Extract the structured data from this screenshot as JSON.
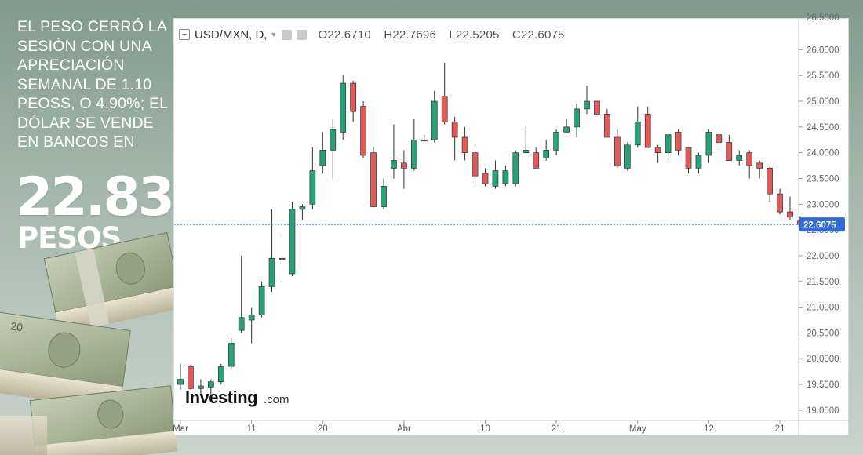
{
  "headline": {
    "text": "El peso cerró la sesión con una apreciación semanal de 1.10 peoss, o 4.90%; el dólar se vende en bancos en",
    "value": "22.83",
    "unit": "PESOS"
  },
  "toolbar": {
    "symbol": "USD/MXN, D,",
    "open_label": "O",
    "open": "22.6710",
    "high_label": "H",
    "high": "22.7696",
    "low_label": "L",
    "low": "22.5205",
    "close_label": "C",
    "close": "22.6075"
  },
  "watermark": {
    "brand": "Investing",
    "suffix": ".com"
  },
  "colors": {
    "up": "#26a17a",
    "down": "#e05a5a",
    "price_line": "#3a6ad1",
    "price_tag": "#2f6bd6"
  },
  "chart_data": {
    "type": "candlestick",
    "title": "USD/MXN, D,",
    "ylim": [
      18.8,
      26.6
    ],
    "y_ticks": [
      "19.0000",
      "19.5000",
      "20.0000",
      "20.5000",
      "21.0000",
      "21.5000",
      "22.0000",
      "22.5000",
      "23.0000",
      "23.5000",
      "24.0000",
      "24.5000",
      "25.0000",
      "25.5000",
      "26.0000"
    ],
    "top_tick_partial": "26.5000",
    "x_labels": [
      {
        "label": "Mar",
        "index": 0
      },
      {
        "label": "11",
        "index": 7
      },
      {
        "label": "20",
        "index": 14
      },
      {
        "label": "Abr",
        "index": 22
      },
      {
        "label": "10",
        "index": 30
      },
      {
        "label": "21",
        "index": 37
      },
      {
        "label": "May",
        "index": 45
      },
      {
        "label": "12",
        "index": 52
      },
      {
        "label": "21",
        "index": 59
      }
    ],
    "last_price": 22.6075,
    "last_price_label": "22.6075",
    "candles": [
      {
        "o": 19.5,
        "h": 19.9,
        "l": 19.4,
        "c": 19.6
      },
      {
        "o": 19.85,
        "h": 19.88,
        "l": 19.4,
        "c": 19.42
      },
      {
        "o": 19.42,
        "h": 19.6,
        "l": 19.3,
        "c": 19.47
      },
      {
        "o": 19.45,
        "h": 19.6,
        "l": 19.3,
        "c": 19.55
      },
      {
        "o": 19.55,
        "h": 19.9,
        "l": 19.5,
        "c": 19.85
      },
      {
        "o": 19.85,
        "h": 20.4,
        "l": 19.8,
        "c": 20.3
      },
      {
        "o": 20.55,
        "h": 22.0,
        "l": 20.5,
        "c": 20.8
      },
      {
        "o": 20.75,
        "h": 21.0,
        "l": 20.3,
        "c": 20.85
      },
      {
        "o": 20.85,
        "h": 21.5,
        "l": 20.8,
        "c": 21.4
      },
      {
        "o": 21.4,
        "h": 22.9,
        "l": 21.3,
        "c": 21.95
      },
      {
        "o": 21.95,
        "h": 22.4,
        "l": 21.5,
        "c": 21.93
      },
      {
        "o": 21.65,
        "h": 23.05,
        "l": 21.6,
        "c": 22.9
      },
      {
        "o": 22.9,
        "h": 23.0,
        "l": 22.7,
        "c": 22.95
      },
      {
        "o": 23.0,
        "h": 24.1,
        "l": 22.9,
        "c": 23.65
      },
      {
        "o": 23.75,
        "h": 24.4,
        "l": 23.6,
        "c": 24.05
      },
      {
        "o": 24.05,
        "h": 24.65,
        "l": 23.5,
        "c": 24.45
      },
      {
        "o": 24.4,
        "h": 25.5,
        "l": 24.25,
        "c": 25.35
      },
      {
        "o": 25.35,
        "h": 25.4,
        "l": 24.6,
        "c": 24.8
      },
      {
        "o": 24.9,
        "h": 25.0,
        "l": 23.9,
        "c": 23.95
      },
      {
        "o": 24.0,
        "h": 24.1,
        "l": 22.95,
        "c": 22.95
      },
      {
        "o": 22.95,
        "h": 23.5,
        "l": 22.9,
        "c": 23.35
      },
      {
        "o": 23.7,
        "h": 24.55,
        "l": 23.5,
        "c": 23.85
      },
      {
        "o": 23.8,
        "h": 24.05,
        "l": 23.3,
        "c": 23.7
      },
      {
        "o": 23.7,
        "h": 24.65,
        "l": 23.65,
        "c": 24.25
      },
      {
        "o": 24.25,
        "h": 24.35,
        "l": 24.25,
        "c": 24.25
      },
      {
        "o": 24.25,
        "h": 25.2,
        "l": 24.2,
        "c": 25.0
      },
      {
        "o": 25.1,
        "h": 25.75,
        "l": 24.55,
        "c": 24.6
      },
      {
        "o": 24.6,
        "h": 24.7,
        "l": 23.85,
        "c": 24.3
      },
      {
        "o": 24.3,
        "h": 24.5,
        "l": 23.85,
        "c": 24.0
      },
      {
        "o": 24.0,
        "h": 24.05,
        "l": 23.4,
        "c": 23.55
      },
      {
        "o": 23.6,
        "h": 23.7,
        "l": 23.35,
        "c": 23.4
      },
      {
        "o": 23.35,
        "h": 23.85,
        "l": 23.3,
        "c": 23.65
      },
      {
        "o": 23.4,
        "h": 23.75,
        "l": 23.35,
        "c": 23.65
      },
      {
        "o": 23.4,
        "h": 24.05,
        "l": 23.35,
        "c": 24.0
      },
      {
        "o": 24.0,
        "h": 24.5,
        "l": 24.0,
        "c": 24.05
      },
      {
        "o": 24.0,
        "h": 24.1,
        "l": 23.7,
        "c": 23.7
      },
      {
        "o": 23.9,
        "h": 24.25,
        "l": 23.85,
        "c": 24.05
      },
      {
        "o": 24.05,
        "h": 24.45,
        "l": 23.95,
        "c": 24.4
      },
      {
        "o": 24.4,
        "h": 24.65,
        "l": 24.4,
        "c": 24.5
      },
      {
        "o": 24.5,
        "h": 24.95,
        "l": 24.3,
        "c": 24.85
      },
      {
        "o": 24.85,
        "h": 25.3,
        "l": 24.75,
        "c": 25.0
      },
      {
        "o": 25.0,
        "h": 25.0,
        "l": 24.75,
        "c": 24.75
      },
      {
        "o": 24.75,
        "h": 24.85,
        "l": 24.3,
        "c": 24.3
      },
      {
        "o": 24.3,
        "h": 24.45,
        "l": 23.7,
        "c": 23.75
      },
      {
        "o": 23.7,
        "h": 24.2,
        "l": 23.65,
        "c": 24.15
      },
      {
        "o": 24.15,
        "h": 24.9,
        "l": 24.1,
        "c": 24.6
      },
      {
        "o": 24.75,
        "h": 24.9,
        "l": 24.1,
        "c": 24.1
      },
      {
        "o": 24.1,
        "h": 24.15,
        "l": 23.8,
        "c": 24.0
      },
      {
        "o": 24.0,
        "h": 24.4,
        "l": 23.85,
        "c": 24.35
      },
      {
        "o": 24.4,
        "h": 24.45,
        "l": 23.95,
        "c": 24.05
      },
      {
        "o": 24.1,
        "h": 24.1,
        "l": 23.6,
        "c": 23.7
      },
      {
        "o": 23.7,
        "h": 24.0,
        "l": 23.6,
        "c": 23.95
      },
      {
        "o": 23.95,
        "h": 24.45,
        "l": 23.8,
        "c": 24.4
      },
      {
        "o": 24.35,
        "h": 24.4,
        "l": 24.1,
        "c": 24.2
      },
      {
        "o": 24.2,
        "h": 24.35,
        "l": 23.85,
        "c": 23.85
      },
      {
        "o": 23.85,
        "h": 24.05,
        "l": 23.75,
        "c": 23.95
      },
      {
        "o": 24.0,
        "h": 24.05,
        "l": 23.5,
        "c": 23.75
      },
      {
        "o": 23.8,
        "h": 23.85,
        "l": 23.5,
        "c": 23.7
      },
      {
        "o": 23.7,
        "h": 23.72,
        "l": 23.05,
        "c": 23.2
      },
      {
        "o": 23.2,
        "h": 23.3,
        "l": 22.8,
        "c": 22.85
      },
      {
        "o": 22.85,
        "h": 23.15,
        "l": 22.7,
        "c": 22.75
      },
      {
        "o": 22.671,
        "h": 22.7696,
        "l": 22.5205,
        "c": 22.6075
      }
    ]
  }
}
